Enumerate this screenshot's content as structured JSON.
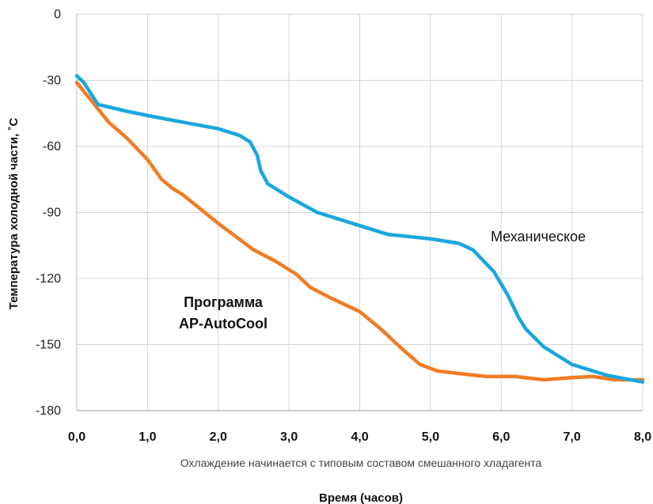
{
  "chart_data": {
    "type": "line",
    "ylabel": "Температура холодной части, ˚C",
    "xlabel": "Время (часов)",
    "note": "Охлаждение начинается с типовым составом смешанного хладагента",
    "x_ticks": [
      "0,0",
      "1,0",
      "2,0",
      "3,0",
      "4,0",
      "5,0",
      "6,0",
      "7,0",
      "8,0"
    ],
    "y_ticks": [
      "0",
      "-30",
      "-60",
      "-90",
      "-120",
      "-150",
      "-180"
    ],
    "xlim": [
      0,
      8
    ],
    "ylim": [
      -180,
      0
    ],
    "grid": true,
    "series": [
      {
        "name": "Механическое",
        "color": "#1aa7dd",
        "label_lines": [
          "Механическое"
        ],
        "points": [
          [
            0.0,
            -28
          ],
          [
            0.1,
            -31
          ],
          [
            0.3,
            -41
          ],
          [
            0.7,
            -44
          ],
          [
            1.0,
            -46
          ],
          [
            1.5,
            -49
          ],
          [
            2.0,
            -52
          ],
          [
            2.3,
            -55
          ],
          [
            2.45,
            -58
          ],
          [
            2.55,
            -64
          ],
          [
            2.6,
            -71
          ],
          [
            2.7,
            -77
          ],
          [
            3.0,
            -83
          ],
          [
            3.4,
            -90
          ],
          [
            4.0,
            -96
          ],
          [
            4.4,
            -100
          ],
          [
            5.0,
            -102
          ],
          [
            5.4,
            -104
          ],
          [
            5.6,
            -107
          ],
          [
            5.9,
            -117
          ],
          [
            6.1,
            -128
          ],
          [
            6.25,
            -138
          ],
          [
            6.35,
            -143
          ],
          [
            6.6,
            -151
          ],
          [
            7.0,
            -159
          ],
          [
            7.5,
            -164
          ],
          [
            8.0,
            -167
          ]
        ]
      },
      {
        "name": "Программа AP-AutoCool",
        "color": "#f07c25",
        "label_lines": [
          "Программа",
          "AP-AutoCool"
        ],
        "points": [
          [
            0.0,
            -31
          ],
          [
            0.2,
            -39
          ],
          [
            0.45,
            -49
          ],
          [
            0.7,
            -56
          ],
          [
            1.0,
            -66
          ],
          [
            1.2,
            -75
          ],
          [
            1.35,
            -79
          ],
          [
            1.5,
            -82
          ],
          [
            2.0,
            -95
          ],
          [
            2.5,
            -107
          ],
          [
            2.8,
            -112
          ],
          [
            3.1,
            -118
          ],
          [
            3.3,
            -124
          ],
          [
            3.6,
            -129
          ],
          [
            4.0,
            -135
          ],
          [
            4.3,
            -143
          ],
          [
            4.6,
            -152
          ],
          [
            4.85,
            -159
          ],
          [
            5.1,
            -162
          ],
          [
            5.5,
            -163.5
          ],
          [
            5.8,
            -164.5
          ],
          [
            6.2,
            -164.5
          ],
          [
            6.6,
            -166
          ],
          [
            7.0,
            -165
          ],
          [
            7.3,
            -164.5
          ],
          [
            7.6,
            -166
          ],
          [
            8.0,
            -166
          ]
        ]
      }
    ]
  }
}
